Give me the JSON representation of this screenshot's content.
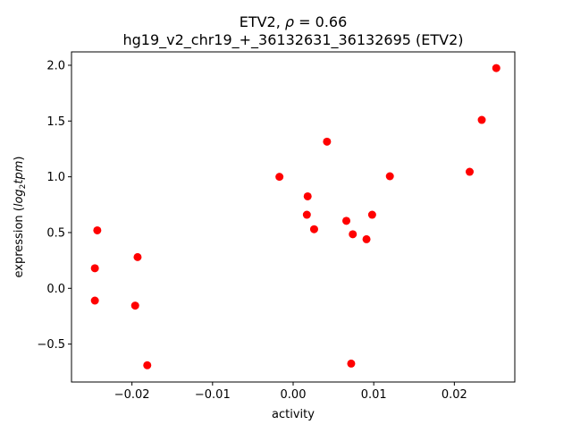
{
  "chart_data": {
    "type": "scatter",
    "title_line1_prefix": "ETV2, ",
    "title_rho_symbol": "ρ",
    "title_line1_suffix": " = 0.66",
    "title_line2": "hg19_v2_chr19_+_36132631_36132695 (ETV2)",
    "xlabel": "activity",
    "ylabel_prefix": "expression (",
    "ylabel_log": "log",
    "ylabel_sub": "2",
    "ylabel_tpm": "tpm",
    "ylabel_suffix": ")",
    "xlim": [
      -0.0275,
      0.0275
    ],
    "ylim": [
      -0.84,
      2.12
    ],
    "x_ticks": [
      -0.02,
      -0.01,
      0.0,
      0.01,
      0.02
    ],
    "x_tick_labels": [
      "−0.02",
      "−0.01",
      "0.00",
      "0.01",
      "0.02"
    ],
    "y_ticks": [
      -0.5,
      0.0,
      0.5,
      1.0,
      1.5,
      2.0
    ],
    "y_tick_labels": [
      "−0.5",
      "0.0",
      "0.5",
      "1.0",
      "1.5",
      "2.0"
    ],
    "grid": false,
    "marker_color": "#ff0000",
    "points": [
      {
        "x": -0.0246,
        "y": 0.18
      },
      {
        "x": -0.0246,
        "y": -0.11
      },
      {
        "x": -0.0243,
        "y": 0.52
      },
      {
        "x": -0.0196,
        "y": -0.155
      },
      {
        "x": -0.0193,
        "y": 0.28
      },
      {
        "x": -0.0181,
        "y": -0.69
      },
      {
        "x": -0.0017,
        "y": 1.0
      },
      {
        "x": 0.0017,
        "y": 0.66
      },
      {
        "x": 0.0018,
        "y": 0.825
      },
      {
        "x": 0.0026,
        "y": 0.53
      },
      {
        "x": 0.0042,
        "y": 1.315
      },
      {
        "x": 0.0066,
        "y": 0.605
      },
      {
        "x": 0.0072,
        "y": -0.675
      },
      {
        "x": 0.0074,
        "y": 0.485
      },
      {
        "x": 0.0091,
        "y": 0.44
      },
      {
        "x": 0.0098,
        "y": 0.66
      },
      {
        "x": 0.012,
        "y": 1.005
      },
      {
        "x": 0.0219,
        "y": 1.045
      },
      {
        "x": 0.0234,
        "y": 1.51
      },
      {
        "x": 0.0252,
        "y": 1.975
      }
    ]
  }
}
